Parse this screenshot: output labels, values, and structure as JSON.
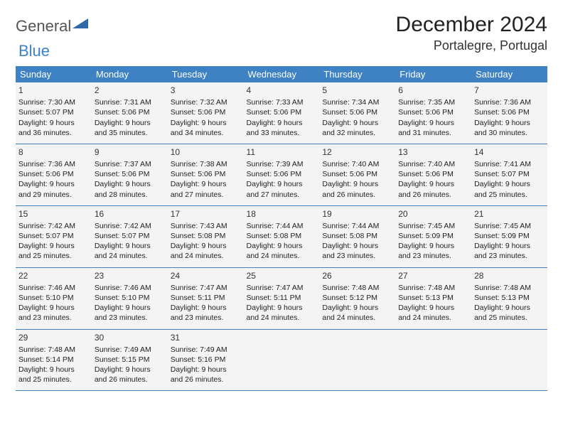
{
  "logo": {
    "text1": "General",
    "text2": "Blue"
  },
  "title": "December 2024",
  "location": "Portalegre, Portugal",
  "colors": {
    "header_bg": "#3e82c4",
    "header_text": "#ffffff",
    "cell_bg": "#f4f4f4",
    "border": "#3e82c4",
    "body_text": "#222222",
    "logo_gray": "#555555",
    "logo_blue": "#3e82c4"
  },
  "day_headers": [
    "Sunday",
    "Monday",
    "Tuesday",
    "Wednesday",
    "Thursday",
    "Friday",
    "Saturday"
  ],
  "weeks": [
    [
      {
        "n": "1",
        "sr": "7:30 AM",
        "ss": "5:07 PM",
        "dl": "9 hours and 36 minutes."
      },
      {
        "n": "2",
        "sr": "7:31 AM",
        "ss": "5:06 PM",
        "dl": "9 hours and 35 minutes."
      },
      {
        "n": "3",
        "sr": "7:32 AM",
        "ss": "5:06 PM",
        "dl": "9 hours and 34 minutes."
      },
      {
        "n": "4",
        "sr": "7:33 AM",
        "ss": "5:06 PM",
        "dl": "9 hours and 33 minutes."
      },
      {
        "n": "5",
        "sr": "7:34 AM",
        "ss": "5:06 PM",
        "dl": "9 hours and 32 minutes."
      },
      {
        "n": "6",
        "sr": "7:35 AM",
        "ss": "5:06 PM",
        "dl": "9 hours and 31 minutes."
      },
      {
        "n": "7",
        "sr": "7:36 AM",
        "ss": "5:06 PM",
        "dl": "9 hours and 30 minutes."
      }
    ],
    [
      {
        "n": "8",
        "sr": "7:36 AM",
        "ss": "5:06 PM",
        "dl": "9 hours and 29 minutes."
      },
      {
        "n": "9",
        "sr": "7:37 AM",
        "ss": "5:06 PM",
        "dl": "9 hours and 28 minutes."
      },
      {
        "n": "10",
        "sr": "7:38 AM",
        "ss": "5:06 PM",
        "dl": "9 hours and 27 minutes."
      },
      {
        "n": "11",
        "sr": "7:39 AM",
        "ss": "5:06 PM",
        "dl": "9 hours and 27 minutes."
      },
      {
        "n": "12",
        "sr": "7:40 AM",
        "ss": "5:06 PM",
        "dl": "9 hours and 26 minutes."
      },
      {
        "n": "13",
        "sr": "7:40 AM",
        "ss": "5:06 PM",
        "dl": "9 hours and 26 minutes."
      },
      {
        "n": "14",
        "sr": "7:41 AM",
        "ss": "5:07 PM",
        "dl": "9 hours and 25 minutes."
      }
    ],
    [
      {
        "n": "15",
        "sr": "7:42 AM",
        "ss": "5:07 PM",
        "dl": "9 hours and 25 minutes."
      },
      {
        "n": "16",
        "sr": "7:42 AM",
        "ss": "5:07 PM",
        "dl": "9 hours and 24 minutes."
      },
      {
        "n": "17",
        "sr": "7:43 AM",
        "ss": "5:08 PM",
        "dl": "9 hours and 24 minutes."
      },
      {
        "n": "18",
        "sr": "7:44 AM",
        "ss": "5:08 PM",
        "dl": "9 hours and 24 minutes."
      },
      {
        "n": "19",
        "sr": "7:44 AM",
        "ss": "5:08 PM",
        "dl": "9 hours and 23 minutes."
      },
      {
        "n": "20",
        "sr": "7:45 AM",
        "ss": "5:09 PM",
        "dl": "9 hours and 23 minutes."
      },
      {
        "n": "21",
        "sr": "7:45 AM",
        "ss": "5:09 PM",
        "dl": "9 hours and 23 minutes."
      }
    ],
    [
      {
        "n": "22",
        "sr": "7:46 AM",
        "ss": "5:10 PM",
        "dl": "9 hours and 23 minutes."
      },
      {
        "n": "23",
        "sr": "7:46 AM",
        "ss": "5:10 PM",
        "dl": "9 hours and 23 minutes."
      },
      {
        "n": "24",
        "sr": "7:47 AM",
        "ss": "5:11 PM",
        "dl": "9 hours and 23 minutes."
      },
      {
        "n": "25",
        "sr": "7:47 AM",
        "ss": "5:11 PM",
        "dl": "9 hours and 24 minutes."
      },
      {
        "n": "26",
        "sr": "7:48 AM",
        "ss": "5:12 PM",
        "dl": "9 hours and 24 minutes."
      },
      {
        "n": "27",
        "sr": "7:48 AM",
        "ss": "5:13 PM",
        "dl": "9 hours and 24 minutes."
      },
      {
        "n": "28",
        "sr": "7:48 AM",
        "ss": "5:13 PM",
        "dl": "9 hours and 25 minutes."
      }
    ],
    [
      {
        "n": "29",
        "sr": "7:48 AM",
        "ss": "5:14 PM",
        "dl": "9 hours and 25 minutes."
      },
      {
        "n": "30",
        "sr": "7:49 AM",
        "ss": "5:15 PM",
        "dl": "9 hours and 26 minutes."
      },
      {
        "n": "31",
        "sr": "7:49 AM",
        "ss": "5:16 PM",
        "dl": "9 hours and 26 minutes."
      },
      null,
      null,
      null,
      null
    ]
  ],
  "labels": {
    "sunrise": "Sunrise:",
    "sunset": "Sunset:",
    "daylight": "Daylight:"
  }
}
